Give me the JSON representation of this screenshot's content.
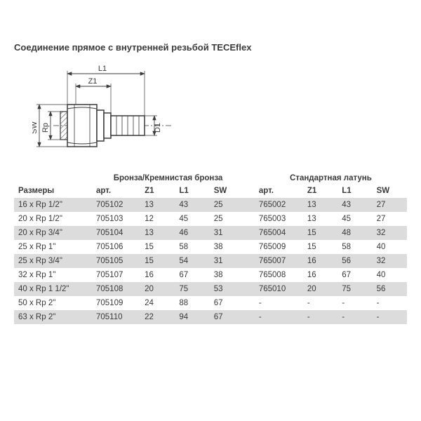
{
  "title": "Соединение прямое с внутренней резьбой TECEflex",
  "diagram": {
    "labels": {
      "L1": "L1",
      "Z1": "Z1",
      "SW": "SW",
      "Rp": "Rp",
      "D1": "D1"
    },
    "stroke": "#3a3a3a",
    "fill_body": "#ffffff",
    "hatch": "#3a3a3a"
  },
  "table": {
    "group1_label": "Бронза/Кремнистая бронза",
    "group2_label": "Стандартная латунь",
    "headers": {
      "size": "Размеры",
      "art": "арт.",
      "Z1": "Z1",
      "L1": "L1",
      "SW": "SW"
    },
    "stripe_odd": "#dcdcdc",
    "stripe_even": "#ffffff",
    "rows": [
      {
        "size": "16 x Rp 1/2\"",
        "a_art": "705102",
        "a_z1": "13",
        "a_l1": "43",
        "a_sw": "25",
        "b_art": "765002",
        "b_z1": "13",
        "b_l1": "43",
        "b_sw": "27"
      },
      {
        "size": "20 x Rp 1/2\"",
        "a_art": "705103",
        "a_z1": "12",
        "a_l1": "45",
        "a_sw": "25",
        "b_art": "765003",
        "b_z1": "13",
        "b_l1": "45",
        "b_sw": "27"
      },
      {
        "size": "20 x Rp 3/4\"",
        "a_art": "705104",
        "a_z1": "13",
        "a_l1": "46",
        "a_sw": "31",
        "b_art": "765004",
        "b_z1": "15",
        "b_l1": "48",
        "b_sw": "32"
      },
      {
        "size": "25 x Rp 1\"",
        "a_art": "705106",
        "a_z1": "15",
        "a_l1": "58",
        "a_sw": "38",
        "b_art": "765009",
        "b_z1": "15",
        "b_l1": "58",
        "b_sw": "40"
      },
      {
        "size": "25 x Rp 3/4\"",
        "a_art": "705105",
        "a_z1": "15",
        "a_l1": "54",
        "a_sw": "31",
        "b_art": "765007",
        "b_z1": "16",
        "b_l1": "56",
        "b_sw": "32"
      },
      {
        "size": "32 x Rp 1\"",
        "a_art": "705107",
        "a_z1": "16",
        "a_l1": "67",
        "a_sw": "38",
        "b_art": "765008",
        "b_z1": "16",
        "b_l1": "67",
        "b_sw": "40"
      },
      {
        "size": "40 x Rp 1 1/2\"",
        "a_art": "705108",
        "a_z1": "20",
        "a_l1": "75",
        "a_sw": "53",
        "b_art": "765010",
        "b_z1": "20",
        "b_l1": "75",
        "b_sw": "56"
      },
      {
        "size": "50 x Rp 2\"",
        "a_art": "705109",
        "a_z1": "24",
        "a_l1": "88",
        "a_sw": "67",
        "b_art": "-",
        "b_z1": "-",
        "b_l1": "-",
        "b_sw": "-"
      },
      {
        "size": "63 x Rp 2\"",
        "a_art": "705110",
        "a_z1": "22",
        "a_l1": "94",
        "a_sw": "67",
        "b_art": "-",
        "b_z1": "-",
        "b_l1": "-",
        "b_sw": "-"
      }
    ]
  }
}
